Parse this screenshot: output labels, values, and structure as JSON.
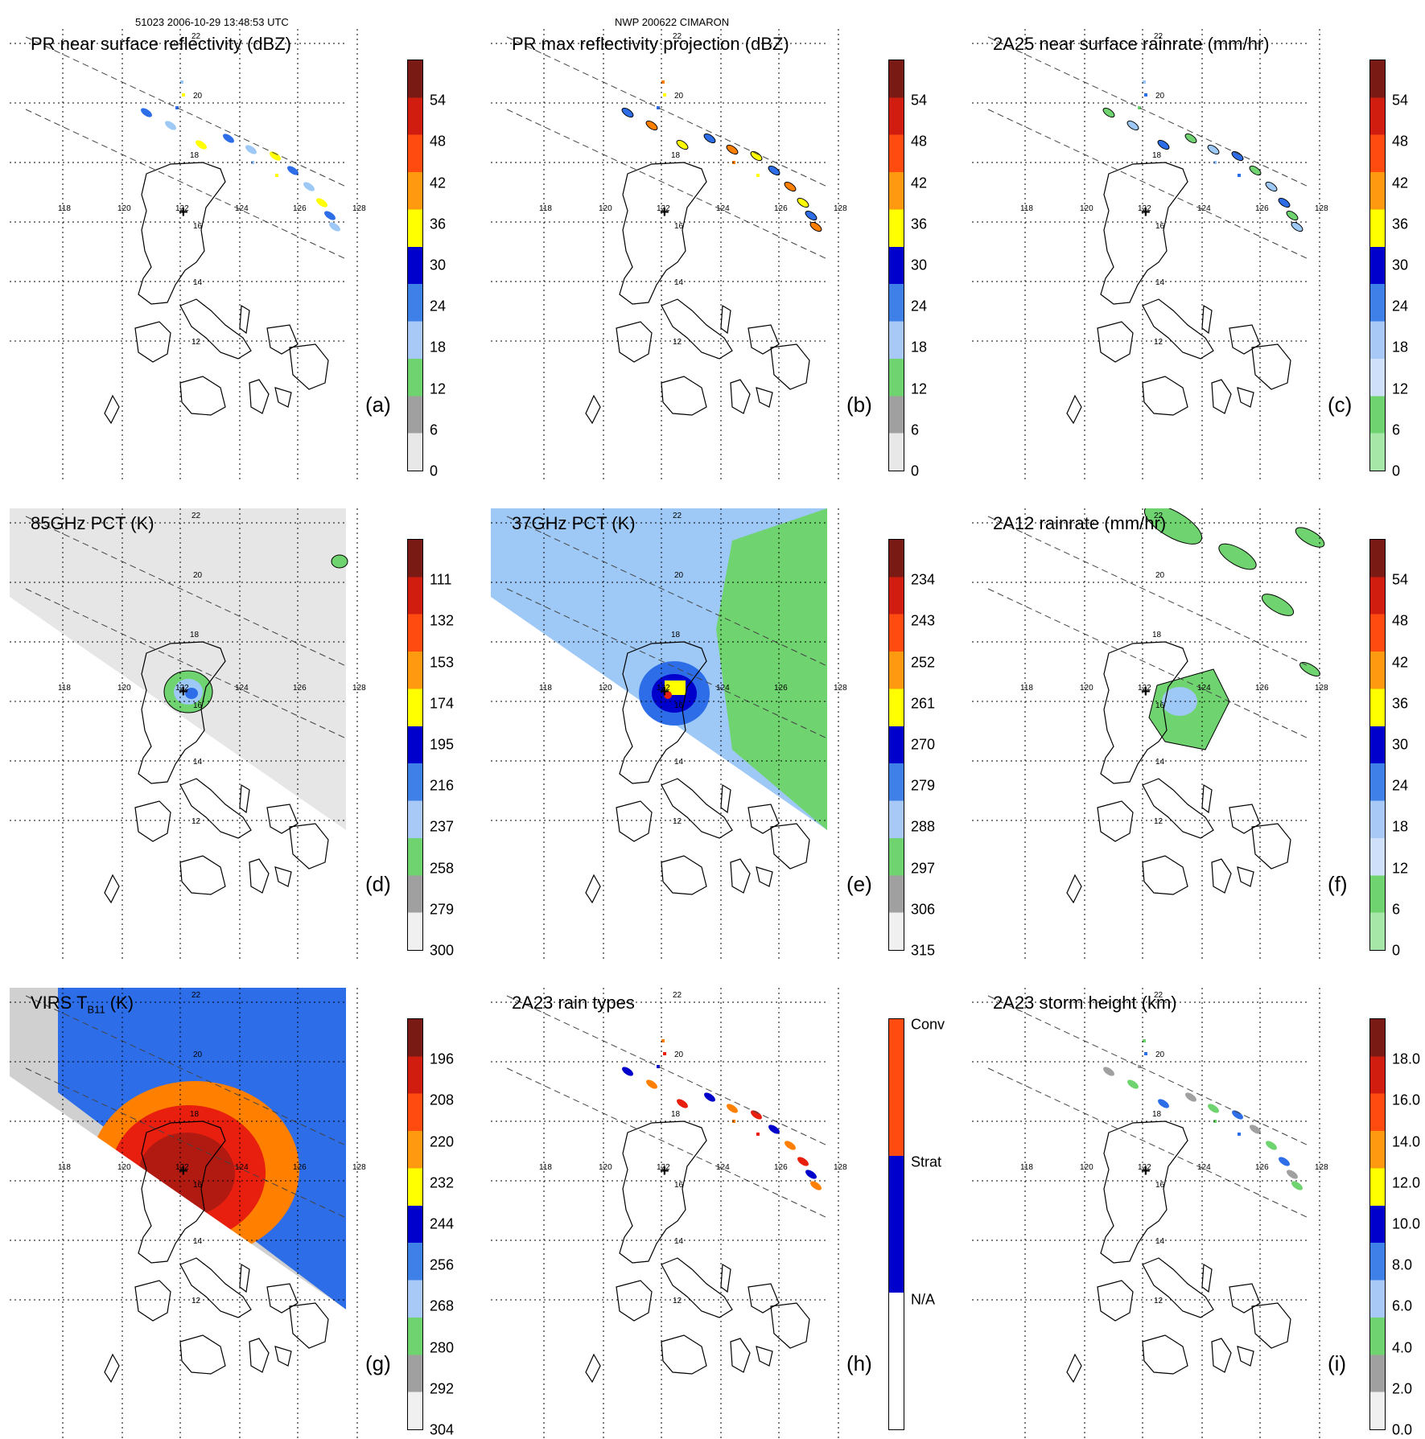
{
  "header": {
    "orbit_time": "51023 2006-10-29 13:48:53 UTC",
    "storm": "NWP 200622 CIMARON"
  },
  "grid_labels": {
    "lon": [
      "118",
      "120",
      "122",
      "124",
      "126",
      "128"
    ],
    "lat": [
      "22",
      "20",
      "18",
      "16",
      "14",
      "12"
    ]
  },
  "colors": {
    "land_outline": "#000000",
    "rain_green": "#6fd46f",
    "rain_lightblue": "#9ec8f5",
    "rain_blue": "#2d6ee8",
    "rain_darkblue": "#0000cc",
    "yellow": "#ffff00",
    "orange": "#ff7f00",
    "red": "#e81f0f",
    "darkred": "#7a1a14"
  },
  "panels": [
    {
      "id": "a",
      "title": "PR near surface reflectivity (dBZ)",
      "letter": "(a)",
      "colorbar": [
        "54",
        "48",
        "42",
        "36",
        "30",
        "24",
        "18",
        "12",
        "6",
        "0"
      ],
      "cmap": "dbz"
    },
    {
      "id": "b",
      "title": "PR max reflectivity projection (dBZ)",
      "letter": "(b)",
      "colorbar": [
        "54",
        "48",
        "42",
        "36",
        "30",
        "24",
        "18",
        "12",
        "6",
        "0"
      ],
      "cmap": "dbz"
    },
    {
      "id": "c",
      "title": "2A25 near surface rainrate (mm/hr)",
      "letter": "(c)",
      "colorbar": [
        "54",
        "48",
        "42",
        "36",
        "30",
        "24",
        "18",
        "12",
        "6",
        "0"
      ],
      "cmap": "rain"
    },
    {
      "id": "d",
      "title": "85GHz PCT (K)",
      "letter": "(d)",
      "colorbar": [
        "111",
        "132",
        "153",
        "174",
        "195",
        "216",
        "237",
        "258",
        "279",
        "300"
      ],
      "cmap": "pct"
    },
    {
      "id": "e",
      "title": "37GHz PCT (K)",
      "letter": "(e)",
      "colorbar": [
        "234",
        "243",
        "252",
        "261",
        "270",
        "279",
        "288",
        "297",
        "306",
        "315"
      ],
      "cmap": "pct"
    },
    {
      "id": "f",
      "title": "2A12 rainrate (mm/hr)",
      "letter": "(f)",
      "colorbar": [
        "54",
        "48",
        "42",
        "36",
        "30",
        "24",
        "18",
        "12",
        "6",
        "0"
      ],
      "cmap": "rain"
    },
    {
      "id": "g",
      "title": "VIRS T",
      "title_sub": "B11",
      "title_tail": " (K)",
      "letter": "(g)",
      "colorbar": [
        "196",
        "208",
        "220",
        "232",
        "244",
        "256",
        "268",
        "280",
        "292",
        "304"
      ],
      "cmap": "pct"
    },
    {
      "id": "h",
      "title": "2A23 rain types",
      "letter": "(h)",
      "colorbar": [
        "Conv",
        "Strat",
        "N/A"
      ],
      "cmap": "types"
    },
    {
      "id": "i",
      "title": "2A23 storm height (km)",
      "letter": "(i)",
      "colorbar": [
        "18.0",
        "16.0",
        "14.0",
        "12.0",
        "10.0",
        "8.0",
        "6.0",
        "4.0",
        "2.0",
        "0.0"
      ],
      "cmap": "height"
    }
  ]
}
